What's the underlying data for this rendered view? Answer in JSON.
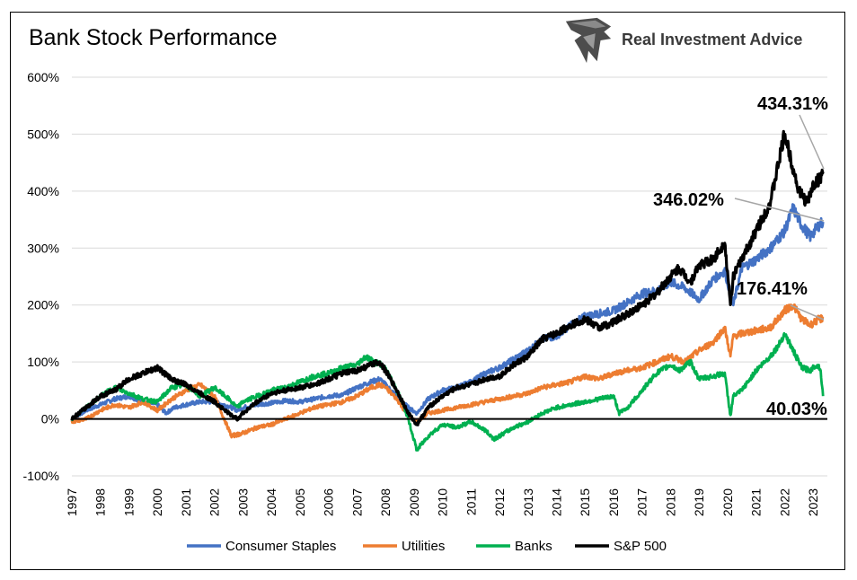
{
  "header": {
    "title": "Bank Stock Performance",
    "brand": "Real Investment Advice"
  },
  "chart_data": {
    "type": "line",
    "title": "Bank Stock Performance",
    "xlabel": "",
    "ylabel": "",
    "xlim": [
      1997,
      2023.5
    ],
    "ylim": [
      -100,
      600
    ],
    "grid": true,
    "legend_position": "bottom",
    "y_ticks": [
      "600%",
      "500%",
      "400%",
      "300%",
      "200%",
      "100%",
      "0%",
      "-100%"
    ],
    "y_tick_values": [
      600,
      500,
      400,
      300,
      200,
      100,
      0,
      -100
    ],
    "x_ticks": [
      "1997",
      "1998",
      "1999",
      "2000",
      "2001",
      "2002",
      "2003",
      "2004",
      "2005",
      "2006",
      "2007",
      "2008",
      "2009",
      "2010",
      "2011",
      "2012",
      "2013",
      "2014",
      "2015",
      "2016",
      "2017",
      "2018",
      "2019",
      "2020",
      "2021",
      "2022",
      "2023"
    ],
    "x_tick_values": [
      1997,
      1998,
      1999,
      2000,
      2001,
      2002,
      2003,
      2004,
      2005,
      2006,
      2007,
      2008,
      2009,
      2010,
      2011,
      2012,
      2013,
      2014,
      2015,
      2016,
      2017,
      2018,
      2019,
      2020,
      2021,
      2022,
      2023
    ],
    "series": [
      {
        "name": "Consumer Staples",
        "color": "#4472C4",
        "x": [
          1997,
          1997.5,
          1998,
          1998.5,
          1999,
          1999.5,
          2000,
          2000.3,
          2000.6,
          2001,
          2001.5,
          2002,
          2002.5,
          2002.8,
          2003,
          2003.5,
          2004,
          2004.5,
          2005,
          2005.5,
          2006,
          2006.5,
          2007,
          2007.5,
          2007.8,
          2008,
          2008.4,
          2008.8,
          2009.1,
          2009.5,
          2010,
          2010.5,
          2011,
          2011.5,
          2012,
          2012.5,
          2013,
          2013.5,
          2014,
          2014.5,
          2015,
          2015.5,
          2016,
          2016.5,
          2017,
          2017.5,
          2018,
          2018.5,
          2019,
          2019.5,
          2019.9,
          2020.2,
          2020.5,
          2021,
          2021.5,
          2022,
          2022.3,
          2022.6,
          2022.9,
          2023.2,
          2023.35
        ],
        "y": [
          0,
          15,
          25,
          35,
          40,
          30,
          25,
          10,
          20,
          25,
          30,
          30,
          22,
          15,
          20,
          25,
          28,
          32,
          30,
          35,
          40,
          42,
          55,
          65,
          70,
          60,
          40,
          20,
          10,
          35,
          50,
          55,
          65,
          80,
          90,
          105,
          120,
          140,
          145,
          165,
          180,
          185,
          190,
          205,
          220,
          225,
          240,
          230,
          210,
          245,
          260,
          200,
          265,
          280,
          300,
          330,
          370,
          340,
          320,
          340,
          346.02
        ]
      },
      {
        "name": "Utilities",
        "color": "#ED7D31",
        "x": [
          1997,
          1997.5,
          1998,
          1998.5,
          1999,
          1999.5,
          2000,
          2000.5,
          2001,
          2001.5,
          2002,
          2002.3,
          2002.6,
          2003,
          2003.5,
          2004,
          2004.5,
          2005,
          2005.5,
          2006,
          2006.5,
          2007,
          2007.5,
          2007.8,
          2008,
          2008.4,
          2008.8,
          2009.1,
          2009.5,
          2010,
          2010.5,
          2011,
          2011.5,
          2012,
          2012.5,
          2013,
          2013.5,
          2014,
          2014.5,
          2015,
          2015.5,
          2016,
          2016.5,
          2017,
          2017.5,
          2018,
          2018.5,
          2019,
          2019.5,
          2019.9,
          2020.1,
          2020.2,
          2020.5,
          2021,
          2021.5,
          2022,
          2022.3,
          2022.6,
          2022.9,
          2023.2,
          2023.35
        ],
        "y": [
          -5,
          0,
          15,
          25,
          20,
          30,
          15,
          35,
          50,
          60,
          40,
          5,
          -30,
          -25,
          -15,
          -10,
          0,
          10,
          20,
          25,
          30,
          40,
          55,
          60,
          55,
          35,
          5,
          -5,
          10,
          15,
          20,
          25,
          30,
          35,
          40,
          45,
          55,
          60,
          65,
          75,
          70,
          80,
          85,
          90,
          100,
          110,
          100,
          120,
          135,
          160,
          110,
          145,
          150,
          155,
          160,
          190,
          200,
          175,
          165,
          175,
          176.41
        ]
      },
      {
        "name": "Banks",
        "color": "#00B050",
        "x": [
          1997,
          1997.5,
          1998,
          1998.5,
          1999,
          1999.5,
          2000,
          2000.5,
          2001,
          2001.5,
          2002,
          2002.5,
          2002.8,
          2003,
          2003.5,
          2004,
          2004.5,
          2005,
          2005.5,
          2006,
          2006.5,
          2007,
          2007.3,
          2007.6,
          2007.9,
          2008.2,
          2008.5,
          2008.8,
          2009.1,
          2009.5,
          2010,
          2010.5,
          2011,
          2011.5,
          2011.8,
          2012,
          2012.5,
          2013,
          2013.5,
          2014,
          2014.5,
          2015,
          2015.5,
          2016,
          2016.2,
          2016.5,
          2017,
          2017.5,
          2018,
          2018.3,
          2018.7,
          2019,
          2019.5,
          2019.9,
          2020.1,
          2020.2,
          2020.5,
          2021,
          2021.5,
          2021.8,
          2022,
          2022.3,
          2022.6,
          2022.9,
          2023.1,
          2023.25,
          2023.35
        ],
        "y": [
          0,
          20,
          40,
          55,
          45,
          35,
          30,
          55,
          60,
          40,
          55,
          35,
          20,
          30,
          40,
          50,
          55,
          65,
          75,
          80,
          90,
          95,
          110,
          100,
          95,
          70,
          40,
          0,
          -55,
          -30,
          -10,
          -15,
          -5,
          -20,
          -35,
          -30,
          -15,
          -5,
          10,
          20,
          25,
          30,
          35,
          40,
          10,
          20,
          50,
          80,
          95,
          85,
          100,
          70,
          75,
          80,
          5,
          40,
          50,
          85,
          110,
          130,
          150,
          120,
          90,
          85,
          95,
          90,
          40.03
        ]
      },
      {
        "name": "S&P 500",
        "color": "#000000",
        "x": [
          1997,
          1997.5,
          1998,
          1998.5,
          1999,
          1999.5,
          2000,
          2000.5,
          2001,
          2001.5,
          2002,
          2002.5,
          2002.8,
          2003,
          2003.5,
          2004,
          2004.5,
          2005,
          2005.5,
          2006,
          2006.5,
          2007,
          2007.5,
          2007.8,
          2008,
          2008.4,
          2008.8,
          2009.1,
          2009.5,
          2010,
          2010.5,
          2011,
          2011.5,
          2012,
          2012.5,
          2013,
          2013.5,
          2014,
          2014.5,
          2015,
          2015.5,
          2016,
          2016.5,
          2017,
          2017.5,
          2018,
          2018.3,
          2018.7,
          2019,
          2019.5,
          2019.9,
          2020.1,
          2020.2,
          2020.5,
          2021,
          2021.5,
          2022,
          2022.2,
          2022.5,
          2022.8,
          2023,
          2023.2,
          2023.35
        ],
        "y": [
          0,
          20,
          40,
          50,
          70,
          80,
          90,
          70,
          60,
          45,
          30,
          10,
          0,
          10,
          30,
          45,
          50,
          55,
          60,
          70,
          80,
          85,
          95,
          100,
          85,
          50,
          10,
          -10,
          20,
          40,
          55,
          60,
          70,
          75,
          95,
          110,
          140,
          150,
          165,
          175,
          160,
          170,
          185,
          200,
          220,
          250,
          265,
          240,
          270,
          280,
          310,
          200,
          250,
          280,
          330,
          380,
          500,
          460,
          400,
          380,
          410,
          420,
          434.31
        ]
      }
    ],
    "annotations": [
      {
        "text": "434.31%",
        "series": "S&P 500",
        "value": 434.31
      },
      {
        "text": "346.02%",
        "series": "Consumer Staples",
        "value": 346.02
      },
      {
        "text": "176.41%",
        "series": "Utilities",
        "value": 176.41
      },
      {
        "text": "40.03%",
        "series": "Banks",
        "value": 40.03
      }
    ]
  }
}
